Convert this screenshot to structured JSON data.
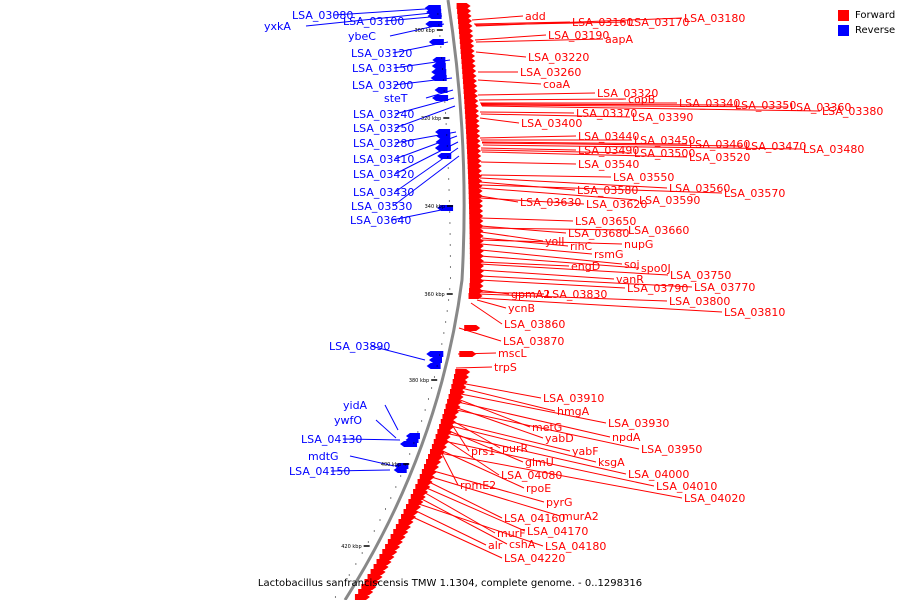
{
  "caption": "Lactobacillus sanfranciscensis TMW 1.1304, complete genome. - 0..1298316",
  "legend": {
    "forward_label": "Forward",
    "reverse_label": "Reverse",
    "forward_color": "#ff0000",
    "reverse_color": "#0000ff"
  },
  "backbone_color": "#777777",
  "ticks": [
    "300 kbp",
    "320 kbp",
    "340 kbp",
    "360 kbp",
    "380 kbp",
    "400 kbp",
    "420 kbp"
  ],
  "reverse_genes": [
    "LSA_03080",
    "yxkA",
    "LSA_03100",
    "ybeC",
    "LSA_03120",
    "LSA_03150",
    "LSA_03200",
    "steT",
    "LSA_03240",
    "LSA_03250",
    "LSA_03280",
    "LSA_03410",
    "LSA_03420",
    "LSA_03430",
    "LSA_03530",
    "LSA_03640",
    "LSA_03890",
    "yidA",
    "ywfO",
    "LSA_04130",
    "mdtG",
    "LSA_04150"
  ],
  "forward_genes": [
    "add",
    "LSA_03160",
    "LSA_03170",
    "LSA_03180",
    "LSA_03190",
    "aapA",
    "LSA_03220",
    "LSA_03260",
    "coaA",
    "LSA_03320",
    "copB",
    "LSA_03340",
    "LSA_03350",
    "LSA_03360",
    "LSA_03380",
    "LSA_03370",
    "LSA_03390",
    "LSA_03400",
    "LSA_03440",
    "LSA_03450",
    "LSA_03460",
    "LSA_03470",
    "LSA_03480",
    "LSA_03490",
    "LSA_03500",
    "LSA_03520",
    "LSA_03540",
    "LSA_03550",
    "LSA_03560",
    "LSA_03580",
    "LSA_03570",
    "LSA_03590",
    "LSA_03630",
    "LSA_03620",
    "LSA_03650",
    "LSA_03680",
    "LSA_03660",
    "yolI",
    "rihC",
    "nupG",
    "rsmG",
    "soj",
    "spo0J",
    "engD",
    "LSA_03750",
    "vanR",
    "LSA_03770",
    "LSA_03790",
    "gpmA2",
    "LSA_03830",
    "LSA_03800",
    "LSA_03810",
    "ycnB",
    "LSA_03860",
    "LSA_03870",
    "mscL",
    "trpS",
    "LSA_03910",
    "hmgA",
    "LSA_03930",
    "metG",
    "npdA",
    "yabD",
    "LSA_03950",
    "prs1",
    "purR",
    "yabF",
    "ksgA",
    "glmU",
    "LSA_04000",
    "LSA_04080",
    "LSA_04010",
    "rpmE2",
    "rpoE",
    "LSA_04020",
    "pyrG",
    "murA2",
    "LSA_04160",
    "LSA_04170",
    "murF",
    "cshA",
    "LSA_04180",
    "alr",
    "LSA_04220"
  ]
}
